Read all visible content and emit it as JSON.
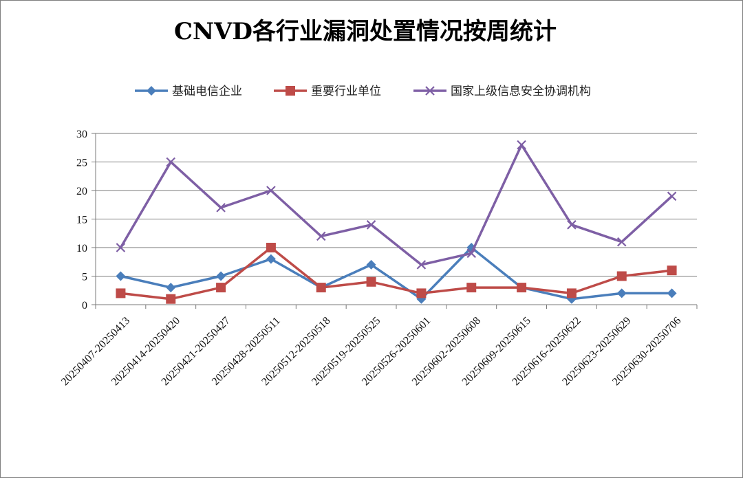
{
  "chart_data": {
    "type": "line",
    "title": "CNVD各行业漏洞处置情况按周统计",
    "xlabel": "",
    "ylabel": "",
    "ylim": [
      0,
      30
    ],
    "yticks": [
      0,
      5,
      10,
      15,
      20,
      25,
      30
    ],
    "grid": true,
    "legend_position": "top",
    "categories": [
      "20250407-20250413",
      "20250414-20250420",
      "20250421-20250427",
      "20250428-20250511",
      "20250512-20250518",
      "20250519-20250525",
      "20250526-20250601",
      "20250602-20250608",
      "20250609-20250615",
      "20250616-20250622",
      "20250623-20250629",
      "20250630-20250706"
    ],
    "series": [
      {
        "name": "基础电信企业",
        "color": "#4a7ebb",
        "marker": "diamond",
        "values": [
          5,
          3,
          5,
          8,
          3,
          7,
          1,
          10,
          3,
          1,
          2,
          2
        ]
      },
      {
        "name": "重要行业单位",
        "color": "#be4b48",
        "marker": "square",
        "values": [
          2,
          1,
          3,
          10,
          3,
          4,
          2,
          3,
          3,
          2,
          5,
          6
        ]
      },
      {
        "name": "国家上级信息安全协调机构",
        "color": "#7e5fa5",
        "marker": "x",
        "values": [
          10,
          25,
          17,
          20,
          12,
          14,
          7,
          9,
          28,
          14,
          11,
          19
        ]
      }
    ]
  }
}
